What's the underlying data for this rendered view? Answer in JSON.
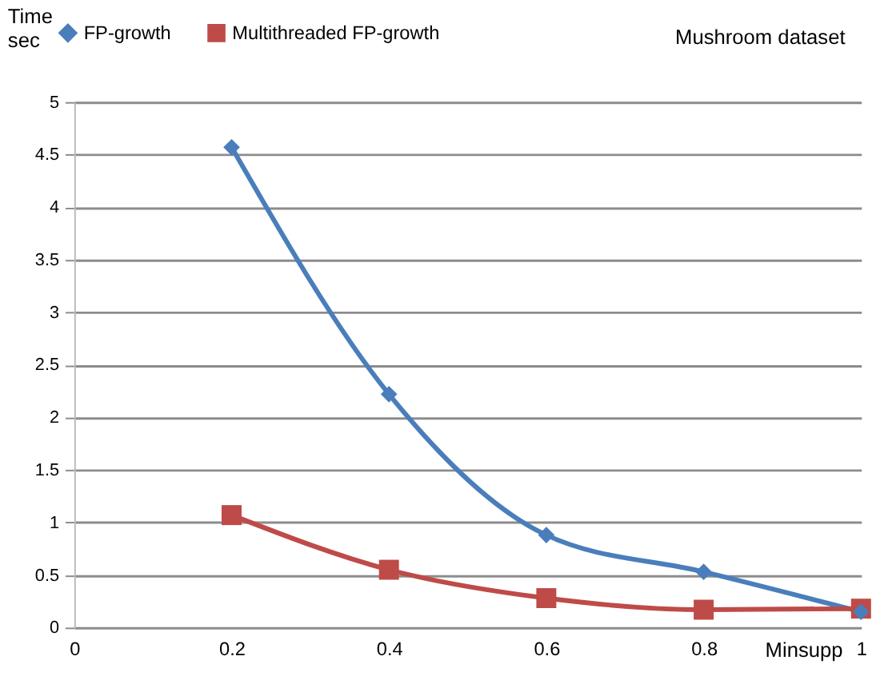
{
  "chart_data": {
    "type": "line",
    "ylabel": "Time sec",
    "xlabel": "Minsupp",
    "annotations": [
      "Mushroom dataset"
    ],
    "x": [
      0.2,
      0.4,
      0.6,
      0.8,
      1
    ],
    "series": [
      {
        "name": "FP-growth",
        "color": "#4a7ebb",
        "marker": "diamond",
        "values": [
          4.57,
          2.22,
          0.88,
          0.53,
          0.15
        ]
      },
      {
        "name": "Multithreaded  FP-growth",
        "color": "#be4b48",
        "marker": "square",
        "values": [
          1.07,
          0.55,
          0.28,
          0.17,
          0.18
        ]
      }
    ],
    "xlim": [
      0,
      1
    ],
    "xticks": [
      0,
      0.2,
      0.4,
      0.6,
      0.8,
      1
    ],
    "ylim": [
      0,
      5
    ],
    "yticks": [
      0,
      0.5,
      1,
      1.5,
      2,
      2.5,
      3,
      3.5,
      4,
      4.5,
      5
    ],
    "grid": "y",
    "legend": "top",
    "line_style": "solid"
  }
}
